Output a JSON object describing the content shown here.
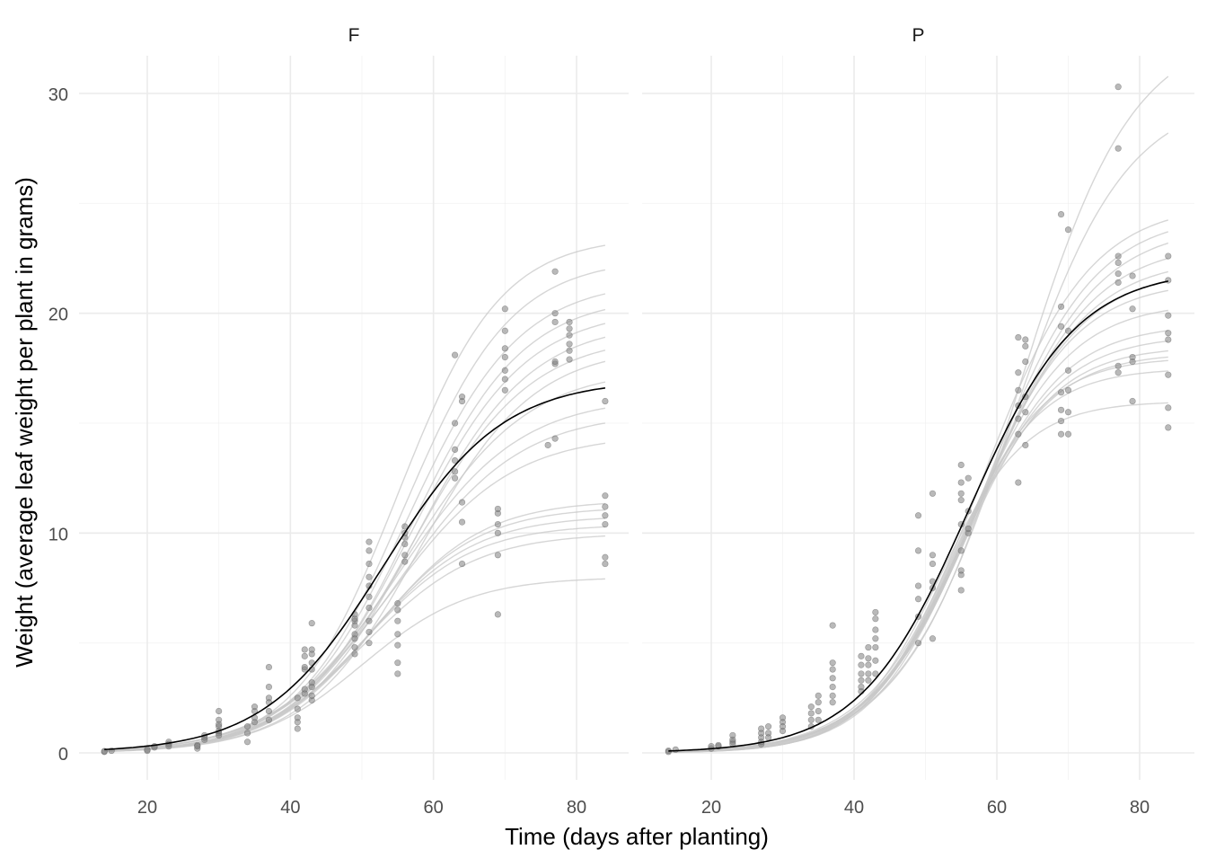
{
  "chart_data": {
    "type": "scatter",
    "xlabel": "Time (days after planting)",
    "ylabel": "Weight (average leaf weight per plant in grams)",
    "xlim": [
      13,
      84
    ],
    "ylim": [
      -1,
      31
    ],
    "x_ticks": [
      20,
      40,
      60,
      80
    ],
    "y_ticks": [
      0,
      10,
      20,
      30
    ],
    "grid": true,
    "legend": "none",
    "colors": {
      "points": "#808080",
      "fit": "#000000",
      "individual_fits": "#c8c8c8",
      "grid": "#ebebeb"
    },
    "panels": [
      {
        "strip": "F",
        "fit": {
          "asym": 17.0,
          "xmid": 53.0,
          "scal": 8.3
        },
        "individual_fits": [
          {
            "asym": 23.5,
            "xmid": 55.0,
            "scal": 7.2
          },
          {
            "asym": 22.5,
            "xmid": 56.0,
            "scal": 7.5
          },
          {
            "asym": 21.5,
            "xmid": 56.5,
            "scal": 7.8
          },
          {
            "asym": 20.8,
            "xmid": 57.0,
            "scal": 7.8
          },
          {
            "asym": 20.2,
            "xmid": 57.0,
            "scal": 8.0
          },
          {
            "asym": 19.6,
            "xmid": 57.5,
            "scal": 8.0
          },
          {
            "asym": 19.0,
            "xmid": 57.0,
            "scal": 8.2
          },
          {
            "asym": 18.5,
            "xmid": 58.0,
            "scal": 8.0
          },
          {
            "asym": 17.5,
            "xmid": 56.0,
            "scal": 8.5
          },
          {
            "asym": 16.2,
            "xmid": 55.0,
            "scal": 8.5
          },
          {
            "asym": 15.5,
            "xmid": 55.0,
            "scal": 8.5
          },
          {
            "asym": 14.5,
            "xmid": 54.0,
            "scal": 8.5
          },
          {
            "asym": 11.5,
            "xmid": 52.0,
            "scal": 7.5
          },
          {
            "asym": 11.2,
            "xmid": 51.5,
            "scal": 7.5
          },
          {
            "asym": 10.8,
            "xmid": 51.0,
            "scal": 7.5
          },
          {
            "asym": 10.4,
            "xmid": 50.5,
            "scal": 7.5
          },
          {
            "asym": 10.0,
            "xmid": 50.5,
            "scal": 7.8
          },
          {
            "asym": 8.0,
            "xmid": 50.0,
            "scal": 7.5
          }
        ],
        "points": [
          [
            14,
            0.05
          ],
          [
            14,
            0.08
          ],
          [
            15,
            0.1
          ],
          [
            20,
            0.1
          ],
          [
            20,
            0.15
          ],
          [
            21,
            0.3
          ],
          [
            21,
            0.25
          ],
          [
            23,
            0.3
          ],
          [
            23,
            0.5
          ],
          [
            23,
            0.4
          ],
          [
            27,
            0.2
          ],
          [
            27,
            0.35
          ],
          [
            27,
            0.3
          ],
          [
            28,
            0.6
          ],
          [
            28,
            0.8
          ],
          [
            28,
            0.7
          ],
          [
            30,
            0.9
          ],
          [
            30,
            1.2
          ],
          [
            30,
            1.5
          ],
          [
            30,
            1.9
          ],
          [
            30,
            0.8
          ],
          [
            30,
            1.3
          ],
          [
            30,
            1.0
          ],
          [
            34,
            0.5
          ],
          [
            34,
            0.9
          ],
          [
            34,
            1.2
          ],
          [
            35,
            1.4
          ],
          [
            35,
            1.9
          ],
          [
            35,
            2.1
          ],
          [
            35,
            1.6
          ],
          [
            37,
            1.5
          ],
          [
            37,
            2.3
          ],
          [
            37,
            2.5
          ],
          [
            37,
            3.0
          ],
          [
            37,
            3.9
          ],
          [
            37,
            1.9
          ],
          [
            41,
            1.1
          ],
          [
            41,
            1.4
          ],
          [
            41,
            1.6
          ],
          [
            41,
            2.0
          ],
          [
            41,
            2.5
          ],
          [
            42,
            2.7
          ],
          [
            42,
            2.9
          ],
          [
            42,
            3.8
          ],
          [
            42,
            3.9
          ],
          [
            42,
            4.4
          ],
          [
            42,
            4.7
          ],
          [
            43,
            2.4
          ],
          [
            43,
            2.6
          ],
          [
            43,
            3.0
          ],
          [
            43,
            3.2
          ],
          [
            43,
            3.8
          ],
          [
            43,
            4.1
          ],
          [
            43,
            4.5
          ],
          [
            43,
            4.7
          ],
          [
            43,
            5.9
          ],
          [
            49,
            4.5
          ],
          [
            49,
            4.8
          ],
          [
            49,
            5.2
          ],
          [
            49,
            5.4
          ],
          [
            49,
            5.8
          ],
          [
            49,
            6.0
          ],
          [
            49,
            6.1
          ],
          [
            49,
            6.3
          ],
          [
            51,
            5.0
          ],
          [
            51,
            5.5
          ],
          [
            51,
            6.0
          ],
          [
            51,
            6.6
          ],
          [
            51,
            7.1
          ],
          [
            51,
            7.6
          ],
          [
            51,
            8.0
          ],
          [
            51,
            8.6
          ],
          [
            51,
            9.2
          ],
          [
            51,
            9.6
          ],
          [
            55,
            3.6
          ],
          [
            55,
            4.1
          ],
          [
            55,
            4.9
          ],
          [
            55,
            5.4
          ],
          [
            55,
            6.0
          ],
          [
            55,
            6.5
          ],
          [
            55,
            6.8
          ],
          [
            56,
            8.7
          ],
          [
            56,
            9.0
          ],
          [
            56,
            9.5
          ],
          [
            56,
            9.8
          ],
          [
            56,
            10.0
          ],
          [
            56,
            10.3
          ],
          [
            63,
            12.5
          ],
          [
            63,
            12.8
          ],
          [
            63,
            13.3
          ],
          [
            63,
            13.8
          ],
          [
            63,
            15.0
          ],
          [
            63,
            18.1
          ],
          [
            64,
            8.6
          ],
          [
            64,
            10.5
          ],
          [
            64,
            11.4
          ],
          [
            64,
            16.0
          ],
          [
            64,
            16.2
          ],
          [
            69,
            6.3
          ],
          [
            69,
            9.0
          ],
          [
            69,
            10.0
          ],
          [
            69,
            10.4
          ],
          [
            69,
            10.9
          ],
          [
            69,
            11.1
          ],
          [
            70,
            16.5
          ],
          [
            70,
            17.0
          ],
          [
            70,
            17.4
          ],
          [
            70,
            18.0
          ],
          [
            70,
            18.4
          ],
          [
            70,
            19.2
          ],
          [
            70,
            20.2
          ],
          [
            76,
            14.0
          ],
          [
            77,
            14.3
          ],
          [
            77,
            17.7
          ],
          [
            77,
            17.8
          ],
          [
            77,
            19.6
          ],
          [
            77,
            20.0
          ],
          [
            77,
            21.9
          ],
          [
            79,
            17.9
          ],
          [
            79,
            18.3
          ],
          [
            79,
            18.6
          ],
          [
            79,
            19.0
          ],
          [
            79,
            19.3
          ],
          [
            79,
            19.6
          ],
          [
            84,
            8.6
          ],
          [
            84,
            8.9
          ],
          [
            84,
            10.4
          ],
          [
            84,
            10.8
          ],
          [
            84,
            11.2
          ],
          [
            84,
            11.7
          ],
          [
            84,
            16.0
          ]
        ]
      },
      {
        "strip": "P",
        "fit": {
          "asym": 22.0,
          "xmid": 56.0,
          "scal": 7.6
        },
        "individual_fits": [
          {
            "asym": 33.0,
            "xmid": 63.0,
            "scal": 8.0
          },
          {
            "asym": 30.0,
            "xmid": 62.0,
            "scal": 8.0
          },
          {
            "asym": 25.0,
            "xmid": 58.0,
            "scal": 7.5
          },
          {
            "asym": 24.5,
            "xmid": 58.5,
            "scal": 7.5
          },
          {
            "asym": 24.0,
            "xmid": 58.5,
            "scal": 7.6
          },
          {
            "asym": 23.2,
            "xmid": 58.0,
            "scal": 7.5
          },
          {
            "asym": 22.5,
            "xmid": 57.5,
            "scal": 7.4
          },
          {
            "asym": 22.0,
            "xmid": 57.0,
            "scal": 7.3
          },
          {
            "asym": 21.5,
            "xmid": 56.5,
            "scal": 7.2
          },
          {
            "asym": 20.5,
            "xmid": 56.0,
            "scal": 7.0
          },
          {
            "asym": 19.5,
            "xmid": 55.5,
            "scal": 6.8
          },
          {
            "asym": 19.0,
            "xmid": 55.0,
            "scal": 6.8
          },
          {
            "asym": 18.5,
            "xmid": 55.0,
            "scal": 6.5
          },
          {
            "asym": 18.2,
            "xmid": 54.5,
            "scal": 6.5
          },
          {
            "asym": 18.0,
            "xmid": 54.0,
            "scal": 6.3
          },
          {
            "asym": 17.5,
            "xmid": 53.5,
            "scal": 6.2
          },
          {
            "asym": 16.0,
            "xmid": 52.0,
            "scal": 6.0
          }
        ],
        "points": [
          [
            14,
            0.1
          ],
          [
            14,
            0.05
          ],
          [
            15,
            0.15
          ],
          [
            20,
            0.2
          ],
          [
            20,
            0.3
          ],
          [
            21,
            0.3
          ],
          [
            21,
            0.35
          ],
          [
            23,
            0.5
          ],
          [
            23,
            0.6
          ],
          [
            23,
            0.8
          ],
          [
            23,
            0.4
          ],
          [
            27,
            0.4
          ],
          [
            27,
            0.5
          ],
          [
            27,
            0.7
          ],
          [
            27,
            0.9
          ],
          [
            27,
            1.1
          ],
          [
            28,
            0.9
          ],
          [
            28,
            1.2
          ],
          [
            28,
            0.7
          ],
          [
            30,
            1.0
          ],
          [
            30,
            1.4
          ],
          [
            30,
            1.6
          ],
          [
            30,
            1.2
          ],
          [
            34,
            1.2
          ],
          [
            34,
            1.5
          ],
          [
            34,
            1.8
          ],
          [
            34,
            2.1
          ],
          [
            35,
            1.5
          ],
          [
            35,
            1.9
          ],
          [
            35,
            2.3
          ],
          [
            35,
            2.6
          ],
          [
            37,
            2.3
          ],
          [
            37,
            2.6
          ],
          [
            37,
            3.0
          ],
          [
            37,
            3.4
          ],
          [
            37,
            3.8
          ],
          [
            37,
            4.1
          ],
          [
            37,
            5.8
          ],
          [
            41,
            2.8
          ],
          [
            41,
            3.0
          ],
          [
            41,
            3.3
          ],
          [
            41,
            3.6
          ],
          [
            41,
            4.0
          ],
          [
            41,
            4.4
          ],
          [
            42,
            3.3
          ],
          [
            42,
            3.6
          ],
          [
            42,
            4.0
          ],
          [
            42,
            4.3
          ],
          [
            42,
            4.8
          ],
          [
            43,
            3.6
          ],
          [
            43,
            4.2
          ],
          [
            43,
            4.8
          ],
          [
            43,
            5.2
          ],
          [
            43,
            5.6
          ],
          [
            43,
            6.1
          ],
          [
            43,
            6.4
          ],
          [
            49,
            5.0
          ],
          [
            49,
            6.2
          ],
          [
            49,
            7.0
          ],
          [
            49,
            7.6
          ],
          [
            49,
            9.2
          ],
          [
            49,
            10.8
          ],
          [
            51,
            5.2
          ],
          [
            51,
            7.5
          ],
          [
            51,
            7.8
          ],
          [
            51,
            8.6
          ],
          [
            51,
            9.0
          ],
          [
            51,
            11.8
          ],
          [
            55,
            7.4
          ],
          [
            55,
            8.1
          ],
          [
            55,
            8.3
          ],
          [
            55,
            9.2
          ],
          [
            55,
            10.4
          ],
          [
            55,
            11.5
          ],
          [
            55,
            11.8
          ],
          [
            55,
            12.3
          ],
          [
            55,
            13.1
          ],
          [
            56,
            10.0
          ],
          [
            56,
            10.2
          ],
          [
            56,
            11.0
          ],
          [
            56,
            12.5
          ],
          [
            63,
            12.3
          ],
          [
            63,
            14.5
          ],
          [
            63,
            15.2
          ],
          [
            63,
            15.8
          ],
          [
            63,
            16.5
          ],
          [
            63,
            17.3
          ],
          [
            63,
            18.9
          ],
          [
            64,
            14.0
          ],
          [
            64,
            15.5
          ],
          [
            64,
            16.2
          ],
          [
            64,
            17.8
          ],
          [
            64,
            18.5
          ],
          [
            64,
            18.8
          ],
          [
            69,
            14.5
          ],
          [
            69,
            15.1
          ],
          [
            69,
            15.6
          ],
          [
            69,
            16.4
          ],
          [
            69,
            19.4
          ],
          [
            69,
            20.3
          ],
          [
            69,
            24.5
          ],
          [
            70,
            14.5
          ],
          [
            70,
            15.5
          ],
          [
            70,
            16.5
          ],
          [
            70,
            17.4
          ],
          [
            70,
            19.2
          ],
          [
            70,
            23.8
          ],
          [
            77,
            17.3
          ],
          [
            77,
            17.6
          ],
          [
            77,
            21.4
          ],
          [
            77,
            21.8
          ],
          [
            77,
            22.3
          ],
          [
            77,
            22.6
          ],
          [
            77,
            27.5
          ],
          [
            77,
            30.3
          ],
          [
            79,
            16.0
          ],
          [
            79,
            17.8
          ],
          [
            79,
            18.0
          ],
          [
            79,
            20.2
          ],
          [
            79,
            21.7
          ],
          [
            84,
            14.8
          ],
          [
            84,
            15.7
          ],
          [
            84,
            17.2
          ],
          [
            84,
            18.8
          ],
          [
            84,
            19.1
          ],
          [
            84,
            19.9
          ],
          [
            84,
            21.5
          ],
          [
            84,
            22.6
          ]
        ]
      }
    ]
  }
}
